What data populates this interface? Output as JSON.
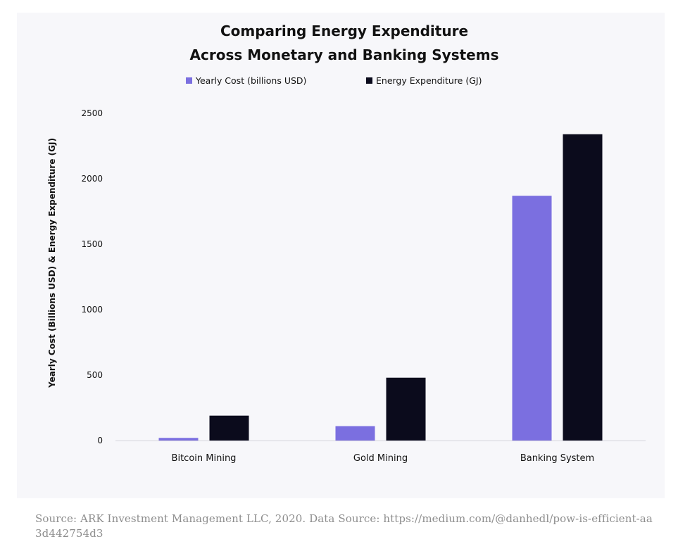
{
  "chart_data": {
    "type": "bar",
    "title_lines": [
      "Comparing Energy Expenditure",
      "Across Monetary and Banking Systems"
    ],
    "xlabel": "",
    "ylabel": "Yearly Cost (Billions USD) & Energy Expenditure (GJ)",
    "categories": [
      "Bitcoin Mining",
      "Gold Mining",
      "Banking System"
    ],
    "series": [
      {
        "name": "Yearly Cost (billions USD)",
        "color": "#7b6fe0",
        "values": [
          20,
          110,
          1870
        ]
      },
      {
        "name": "Energy Expenditure (GJ)",
        "color": "#0b0b1c",
        "values": [
          190,
          480,
          2340
        ]
      }
    ],
    "ylim": [
      0,
      2500
    ],
    "yticks": [
      0,
      500,
      1000,
      1500,
      2000,
      2500
    ],
    "grid": false,
    "legend_position": "top-center"
  },
  "source": "Source: ARK Investment Management LLC, 2020. Data Source: https://medium.com/@danhedl/pow-is-efficient-aa3d442754d3"
}
